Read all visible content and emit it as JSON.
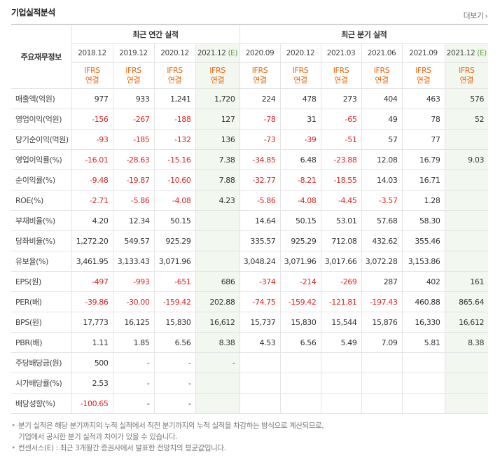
{
  "section_title": "기업실적분석",
  "more_link": "더보기",
  "header": {
    "corner": "주요재무정보",
    "annual_group": "최근 연간 실적",
    "quarter_group": "최근 분기 실적",
    "periods": [
      "2018.12",
      "2019.12",
      "2020.12",
      "2021.12",
      "2020.09",
      "2020.12",
      "2021.03",
      "2021.06",
      "2021.09",
      "2021.12"
    ],
    "estimate_mark": "(E)",
    "ifrs_top": "IFRS",
    "ifrs_bottom": "연결"
  },
  "rows": [
    {
      "label": "매출액(억원)",
      "values": [
        "977",
        "933",
        "1,241",
        "1,720",
        "224",
        "478",
        "273",
        "404",
        "463",
        "576"
      ]
    },
    {
      "label": "영업이익(억원)",
      "values": [
        "-156",
        "-267",
        "-188",
        "127",
        "-78",
        "31",
        "-65",
        "49",
        "78",
        "52"
      ]
    },
    {
      "label": "당기순이익(억원)",
      "values": [
        "-93",
        "-185",
        "-132",
        "136",
        "-73",
        "-39",
        "-51",
        "57",
        "77",
        ""
      ]
    },
    {
      "label": "영업이익률(%)",
      "values": [
        "-16.01",
        "-28.63",
        "-15.16",
        "7.38",
        "-34.85",
        "6.48",
        "-23.88",
        "12.08",
        "16.79",
        "9.03"
      ]
    },
    {
      "label": "순이익률(%)",
      "values": [
        "-9.48",
        "-19.87",
        "-10.60",
        "7.88",
        "-32.77",
        "-8.21",
        "-18.55",
        "14.03",
        "16.71",
        ""
      ]
    },
    {
      "label": "ROE(%)",
      "values": [
        "-2.71",
        "-5.86",
        "-4.08",
        "4.23",
        "-5.86",
        "-4.08",
        "-4.45",
        "-3.57",
        "1.28",
        ""
      ]
    },
    {
      "label": "부채비율(%)",
      "values": [
        "4.20",
        "12.34",
        "50.15",
        "",
        "14.64",
        "50.15",
        "53.01",
        "57.68",
        "58.30",
        ""
      ]
    },
    {
      "label": "당좌비율(%)",
      "values": [
        "1,272.20",
        "549.57",
        "925.29",
        "",
        "335.57",
        "925.29",
        "712.08",
        "432.62",
        "355.46",
        ""
      ]
    },
    {
      "label": "유보율(%)",
      "values": [
        "3,461.95",
        "3,133.43",
        "3,071.96",
        "",
        "3,048.24",
        "3,071.96",
        "3,017.66",
        "3,072.28",
        "3,153.86",
        ""
      ]
    },
    {
      "label": "EPS(원)",
      "values": [
        "-497",
        "-993",
        "-651",
        "686",
        "-374",
        "-214",
        "-269",
        "287",
        "402",
        "161"
      ]
    },
    {
      "label": "PER(배)",
      "values": [
        "-39.86",
        "-30.00",
        "-159.42",
        "202.88",
        "-74.75",
        "-159.42",
        "-121.81",
        "-197.43",
        "460.88",
        "865.64"
      ]
    },
    {
      "label": "BPS(원)",
      "values": [
        "17,773",
        "16,125",
        "15,830",
        "16,612",
        "15,737",
        "15,830",
        "15,544",
        "15,876",
        "16,330",
        "16,612"
      ]
    },
    {
      "label": "PBR(배)",
      "values": [
        "1.11",
        "1.85",
        "6.56",
        "8.38",
        "4.53",
        "6.56",
        "5.49",
        "7.09",
        "5.81",
        "8.38"
      ]
    },
    {
      "label": "주당배당금(원)",
      "values": [
        "500",
        "-",
        "-",
        "-",
        "",
        "",
        "",
        "",
        "",
        ""
      ]
    },
    {
      "label": "시가배당률(%)",
      "values": [
        "2.53",
        "-",
        "-",
        "",
        "",
        "",
        "",
        "",
        "",
        ""
      ]
    },
    {
      "label": "배당성향(%)",
      "values": [
        "-100.65",
        "-",
        "-",
        "",
        "",
        "",
        "",
        "",
        "",
        ""
      ]
    }
  ],
  "notes": [
    "분기 실적은 해당 분기까지의 누적 실적에서 직전 분기까지의 누적 실적을 차감하는 방식으로 계산되므로,",
    "기업에서 공시한 분기 실적과 차이가 있을 수 있습니다.",
    "컨센서스(E) : 최근 3개월간 증권사에서 발표한 전망치의 평균값입니다."
  ],
  "colors": {
    "negative": "#e02424",
    "ifrs": "#ee6b10",
    "estimate_bg": "#f2f7ef",
    "estimate_mark": "#5aa03b"
  }
}
